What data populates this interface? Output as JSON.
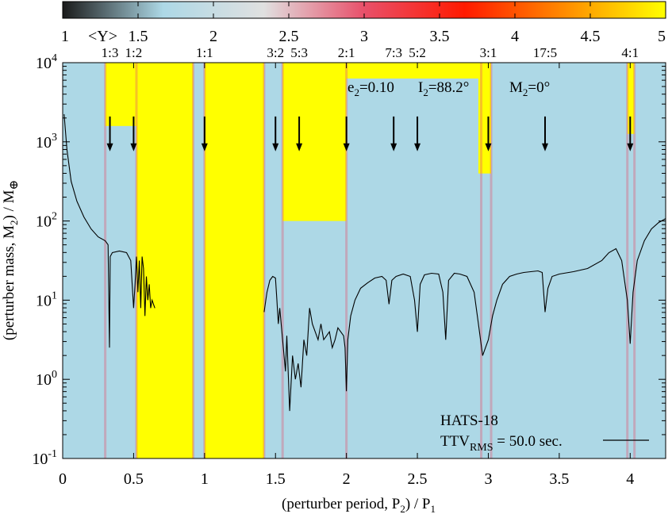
{
  "chart_data": {
    "type": "heatmap",
    "colorbar": {
      "label": "<Y>",
      "min": 1,
      "max": 5,
      "ticks": [
        "1",
        "1.5",
        "2",
        "2.5",
        "3",
        "3.5",
        "4",
        "4.5",
        "5"
      ],
      "tick_values": [
        1,
        1.5,
        2,
        2.5,
        3,
        3.5,
        4,
        4.5,
        5
      ],
      "colors": [
        "#1a1a1a",
        "#add8e6",
        "#e0e0e0",
        "#e8506a",
        "#ff1a00",
        "#ff8c00",
        "#ffff00"
      ]
    },
    "xlabel": "(perturber period, P",
    "xlabel_sub": "2",
    "xlabel_tail": ") / P",
    "xlabel_sub2": "1",
    "ylabel": "(perturber mass, M",
    "ylabel_sub": "2",
    "ylabel_tail": ") / M",
    "ylabel_symbol": "⊕",
    "xlim": [
      0,
      4.25
    ],
    "ylim_log10": [
      -1,
      4
    ],
    "yscale": "log",
    "x_ticks": [
      "0",
      "0.5",
      "1",
      "1.5",
      "2",
      "2.5",
      "3",
      "3.5",
      "4"
    ],
    "x_tick_values": [
      0,
      0.5,
      1,
      1.5,
      2,
      2.5,
      3,
      3.5,
      4
    ],
    "y_ticks": [
      {
        "base": "10",
        "exp": "-1",
        "value": -1
      },
      {
        "base": "10",
        "exp": "0",
        "value": 0
      },
      {
        "base": "10",
        "exp": "1",
        "value": 1
      },
      {
        "base": "10",
        "exp": "2",
        "value": 2
      },
      {
        "base": "10",
        "exp": "3",
        "value": 3
      },
      {
        "base": "10",
        "exp": "4",
        "value": 4
      }
    ],
    "resonances": [
      {
        "label": "1:3",
        "x": 0.333
      },
      {
        "label": "1:2",
        "x": 0.5
      },
      {
        "label": "1:1",
        "x": 1.0
      },
      {
        "label": "3:2",
        "x": 1.5
      },
      {
        "label": "5:3",
        "x": 1.667
      },
      {
        "label": "2:1",
        "x": 2.0
      },
      {
        "label": "7:3",
        "x": 2.333
      },
      {
        "label": "5:2",
        "x": 2.5
      },
      {
        "label": "3:1",
        "x": 3.0
      },
      {
        "label": "17:5",
        "x": 3.4
      },
      {
        "label": "4:1",
        "x": 4.0
      }
    ],
    "stable_background_color": "#add8e6",
    "chaotic_color": "#ffff00",
    "yellow_regions": [
      {
        "x0": 0.3,
        "x1": 0.52,
        "top_y": 4,
        "bottom_y": 3.2
      },
      {
        "x0": 0.52,
        "x1": 0.92,
        "top_y": 4,
        "bottom_y": -1
      },
      {
        "x0": 1.0,
        "x1": 1.42,
        "top_y": 4,
        "bottom_y": -1
      },
      {
        "x0": 1.55,
        "x1": 2.0,
        "top_y": 4,
        "bottom_y": 2.0
      },
      {
        "x0": 2.0,
        "x1": 2.95,
        "top_y": 4,
        "bottom_y": 3.8
      },
      {
        "x0": 2.93,
        "x1": 3.02,
        "top_y": 4,
        "bottom_y": 2.6
      },
      {
        "x0": 3.98,
        "x1": 4.03,
        "top_y": 4,
        "bottom_y": 3.1
      }
    ],
    "series": [
      {
        "name": "TTV",
        "name_sub": "RMS",
        "name_tail": " = 50.0 sec.",
        "color": "#000000",
        "segments": [
          [
            [
              0.01,
              3.35
            ],
            [
              0.03,
              2.9
            ],
            [
              0.06,
              2.5
            ],
            [
              0.1,
              2.25
            ],
            [
              0.15,
              2.05
            ],
            [
              0.2,
              1.9
            ],
            [
              0.25,
              1.8
            ],
            [
              0.3,
              1.75
            ],
            [
              0.32,
              1.7
            ],
            [
              0.33,
              0.4
            ],
            [
              0.335,
              1.55
            ],
            [
              0.35,
              1.6
            ],
            [
              0.4,
              1.62
            ],
            [
              0.45,
              1.6
            ],
            [
              0.48,
              1.5
            ],
            [
              0.5,
              0.9
            ],
            [
              0.51,
              1.2
            ],
            [
              0.52,
              1.55
            ],
            [
              0.53,
              1.1
            ],
            [
              0.54,
              1.5
            ],
            [
              0.55,
              0.9
            ],
            [
              0.56,
              1.55
            ],
            [
              0.57,
              1.4
            ],
            [
              0.58,
              0.8
            ],
            [
              0.59,
              1.3
            ],
            [
              0.6,
              1.0
            ],
            [
              0.61,
              1.2
            ],
            [
              0.62,
              0.9
            ],
            [
              0.63,
              1.0
            ],
            [
              0.64,
              0.95
            ],
            [
              0.65,
              0.9
            ]
          ],
          [
            [
              1.42,
              0.85
            ],
            [
              1.44,
              1.1
            ],
            [
              1.46,
              1.25
            ],
            [
              1.48,
              1.3
            ],
            [
              1.5,
              1.28
            ],
            [
              1.51,
              1.0
            ],
            [
              1.52,
              0.7
            ],
            [
              1.53,
              0.9
            ],
            [
              1.55,
              0.5
            ],
            [
              1.57,
              0.1
            ],
            [
              1.58,
              0.55
            ],
            [
              1.6,
              -0.4
            ],
            [
              1.62,
              0.3
            ],
            [
              1.64,
              0.0
            ],
            [
              1.66,
              0.2
            ],
            [
              1.68,
              -0.1
            ],
            [
              1.7,
              0.5
            ],
            [
              1.72,
              0.3
            ],
            [
              1.74,
              0.9
            ],
            [
              1.76,
              0.7
            ],
            [
              1.78,
              0.6
            ],
            [
              1.8,
              0.5
            ],
            [
              1.82,
              0.7
            ],
            [
              1.84,
              0.5
            ],
            [
              1.86,
              0.55
            ],
            [
              1.88,
              0.6
            ],
            [
              1.9,
              0.4
            ],
            [
              1.92,
              0.5
            ],
            [
              1.94,
              0.65
            ],
            [
              1.96,
              0.6
            ],
            [
              1.98,
              0.55
            ],
            [
              1.99,
              0.4
            ],
            [
              2.0,
              -0.15
            ],
            [
              2.01,
              0.5
            ],
            [
              2.03,
              0.8
            ],
            [
              2.06,
              1.0
            ],
            [
              2.1,
              1.15
            ],
            [
              2.15,
              1.22
            ],
            [
              2.2,
              1.28
            ],
            [
              2.25,
              1.3
            ],
            [
              2.28,
              1.25
            ],
            [
              2.3,
              0.95
            ],
            [
              2.32,
              1.25
            ],
            [
              2.35,
              1.3
            ],
            [
              2.4,
              1.33
            ],
            [
              2.45,
              1.3
            ],
            [
              2.48,
              1.0
            ],
            [
              2.5,
              0.6
            ],
            [
              2.52,
              1.2
            ],
            [
              2.55,
              1.32
            ],
            [
              2.6,
              1.34
            ],
            [
              2.65,
              1.33
            ],
            [
              2.68,
              1.1
            ],
            [
              2.7,
              0.5
            ],
            [
              2.72,
              1.25
            ],
            [
              2.76,
              1.34
            ],
            [
              2.8,
              1.33
            ],
            [
              2.85,
              1.3
            ],
            [
              2.9,
              1.1
            ],
            [
              2.93,
              0.7
            ],
            [
              2.96,
              0.3
            ],
            [
              3.0,
              0.5
            ],
            [
              3.03,
              0.8
            ],
            [
              3.06,
              1.0
            ],
            [
              3.1,
              1.2
            ],
            [
              3.15,
              1.3
            ],
            [
              3.2,
              1.33
            ],
            [
              3.25,
              1.35
            ],
            [
              3.3,
              1.36
            ],
            [
              3.35,
              1.37
            ],
            [
              3.38,
              1.35
            ],
            [
              3.4,
              0.85
            ],
            [
              3.42,
              1.15
            ],
            [
              3.45,
              1.3
            ],
            [
              3.5,
              1.33
            ],
            [
              3.6,
              1.36
            ],
            [
              3.7,
              1.4
            ],
            [
              3.8,
              1.5
            ],
            [
              3.85,
              1.6
            ],
            [
              3.9,
              1.65
            ],
            [
              3.94,
              1.5
            ],
            [
              3.98,
              1.0
            ],
            [
              4.0,
              0.45
            ],
            [
              4.02,
              1.1
            ],
            [
              4.05,
              1.5
            ],
            [
              4.1,
              1.75
            ],
            [
              4.15,
              1.9
            ],
            [
              4.2,
              1.98
            ],
            [
              4.25,
              2.03
            ]
          ]
        ]
      }
    ],
    "annotations": [
      {
        "text": "e",
        "sub": "2",
        "tail": "=0.10"
      },
      {
        "text": "I",
        "sub": "2",
        "tail": "=88.2°"
      },
      {
        "text": "M",
        "sub": "2",
        "tail": "=0°"
      },
      {
        "text": "HATS-18"
      }
    ]
  }
}
